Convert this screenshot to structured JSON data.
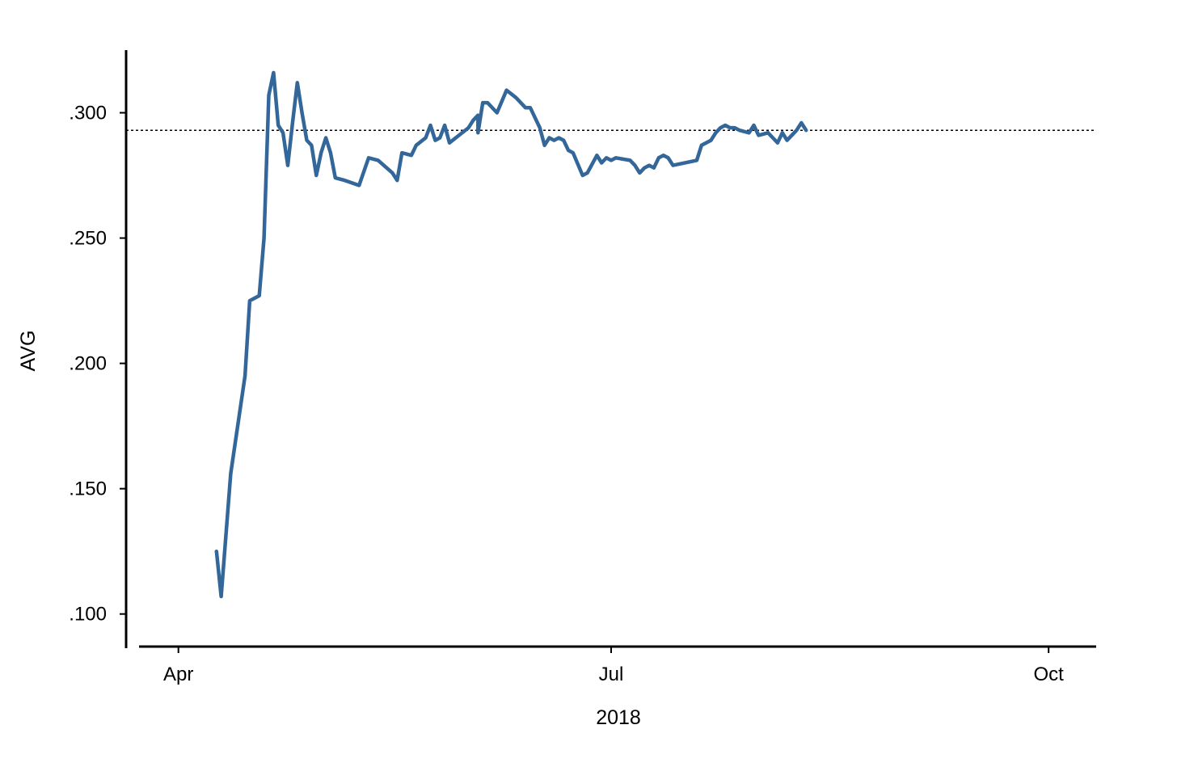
{
  "chart_data": {
    "type": "line",
    "title": "",
    "xlabel": "2018",
    "ylabel": "AVG",
    "ylim": [
      0.087,
      0.325
    ],
    "xlim": [
      "2018-03-21",
      "2018-10-11"
    ],
    "y_ticks": [
      {
        "value": 0.1,
        "label": ".100"
      },
      {
        "value": 0.15,
        "label": ".150"
      },
      {
        "value": 0.2,
        "label": ".200"
      },
      {
        "value": 0.25,
        "label": ".250"
      },
      {
        "value": 0.3,
        "label": ".300"
      }
    ],
    "x_ticks": [
      {
        "value": "2018-04-01",
        "label": "Apr"
      },
      {
        "value": "2018-07-01",
        "label": "Jul"
      },
      {
        "value": "2018-10-01",
        "label": "Oct"
      }
    ],
    "reference_line": {
      "y": 0.293,
      "style": "dotted",
      "color": "#000000"
    },
    "grid": false,
    "colors": {
      "line": "#336699",
      "axis": "#000000",
      "background": "#ffffff"
    },
    "series": [
      {
        "values": [
          [
            "2018-04-09",
            0.125
          ],
          [
            "2018-04-10",
            0.107
          ],
          [
            "2018-04-12",
            0.156
          ],
          [
            "2018-04-15",
            0.195
          ],
          [
            "2018-04-16",
            0.225
          ],
          [
            "2018-04-18",
            0.227
          ],
          [
            "2018-04-19",
            0.25
          ],
          [
            "2018-04-20",
            0.307
          ],
          [
            "2018-04-21",
            0.316
          ],
          [
            "2018-04-22",
            0.295
          ],
          [
            "2018-04-23",
            0.292
          ],
          [
            "2018-04-24",
            0.279
          ],
          [
            "2018-04-25",
            0.296
          ],
          [
            "2018-04-26",
            0.312
          ],
          [
            "2018-04-27",
            0.3
          ],
          [
            "2018-04-28",
            0.289
          ],
          [
            "2018-04-29",
            0.287
          ],
          [
            "2018-04-30",
            0.275
          ],
          [
            "2018-05-01",
            0.284
          ],
          [
            "2018-05-02",
            0.29
          ],
          [
            "2018-05-03",
            0.284
          ],
          [
            "2018-05-04",
            0.274
          ],
          [
            "2018-05-06",
            0.273
          ],
          [
            "2018-05-09",
            0.271
          ],
          [
            "2018-05-11",
            0.282
          ],
          [
            "2018-05-13",
            0.281
          ],
          [
            "2018-05-16",
            0.276
          ],
          [
            "2018-05-17",
            0.273
          ],
          [
            "2018-05-18",
            0.284
          ],
          [
            "2018-05-20",
            0.283
          ],
          [
            "2018-05-21",
            0.287
          ],
          [
            "2018-05-23",
            0.29
          ],
          [
            "2018-05-24",
            0.295
          ],
          [
            "2018-05-25",
            0.289
          ],
          [
            "2018-05-26",
            0.29
          ],
          [
            "2018-05-27",
            0.295
          ],
          [
            "2018-05-28",
            0.288
          ],
          [
            "2018-05-30",
            0.291
          ],
          [
            "2018-06-01",
            0.294
          ],
          [
            "2018-06-02",
            0.297
          ],
          [
            "2018-06-03",
            0.299
          ],
          [
            "2018-06-03",
            0.292
          ],
          [
            "2018-06-04",
            0.304
          ],
          [
            "2018-06-05",
            0.304
          ],
          [
            "2018-06-07",
            0.3
          ],
          [
            "2018-06-09",
            0.309
          ],
          [
            "2018-06-11",
            0.306
          ],
          [
            "2018-06-13",
            0.302
          ],
          [
            "2018-06-14",
            0.302
          ],
          [
            "2018-06-16",
            0.294
          ],
          [
            "2018-06-17",
            0.287
          ],
          [
            "2018-06-18",
            0.29
          ],
          [
            "2018-06-19",
            0.289
          ],
          [
            "2018-06-20",
            0.29
          ],
          [
            "2018-06-21",
            0.289
          ],
          [
            "2018-06-22",
            0.285
          ],
          [
            "2018-06-23",
            0.284
          ],
          [
            "2018-06-25",
            0.275
          ],
          [
            "2018-06-26",
            0.276
          ],
          [
            "2018-06-28",
            0.283
          ],
          [
            "2018-06-29",
            0.28
          ],
          [
            "2018-06-30",
            0.282
          ],
          [
            "2018-07-01",
            0.281
          ],
          [
            "2018-07-02",
            0.282
          ],
          [
            "2018-07-05",
            0.281
          ],
          [
            "2018-07-06",
            0.279
          ],
          [
            "2018-07-07",
            0.276
          ],
          [
            "2018-07-08",
            0.278
          ],
          [
            "2018-07-09",
            0.279
          ],
          [
            "2018-07-10",
            0.278
          ],
          [
            "2018-07-11",
            0.282
          ],
          [
            "2018-07-12",
            0.283
          ],
          [
            "2018-07-13",
            0.282
          ],
          [
            "2018-07-14",
            0.279
          ],
          [
            "2018-07-19",
            0.281
          ],
          [
            "2018-07-20",
            0.287
          ],
          [
            "2018-07-22",
            0.289
          ],
          [
            "2018-07-23",
            0.292
          ],
          [
            "2018-07-24",
            0.294
          ],
          [
            "2018-07-25",
            0.295
          ],
          [
            "2018-07-26",
            0.294
          ],
          [
            "2018-07-27",
            0.294
          ],
          [
            "2018-07-28",
            0.293
          ],
          [
            "2018-07-30",
            0.292
          ],
          [
            "2018-07-31",
            0.295
          ],
          [
            "2018-08-01",
            0.291
          ],
          [
            "2018-08-03",
            0.292
          ],
          [
            "2018-08-04",
            0.29
          ],
          [
            "2018-08-05",
            0.288
          ],
          [
            "2018-08-06",
            0.292
          ],
          [
            "2018-08-07",
            0.289
          ],
          [
            "2018-08-09",
            0.293
          ],
          [
            "2018-08-10",
            0.296
          ],
          [
            "2018-08-11",
            0.293
          ]
        ]
      }
    ]
  }
}
